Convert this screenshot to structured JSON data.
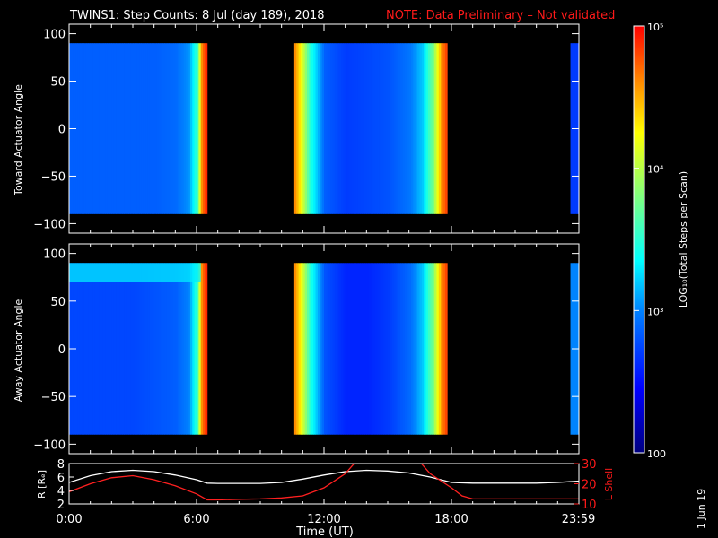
{
  "title": {
    "main": "TWINS1: Step Counts:  8 Jul (day 189), 2018",
    "note": "NOTE: Data Preliminary – Not validated"
  },
  "colors": {
    "background": "#000000",
    "note_red": "#ff1a1a",
    "lshell_red": "#ff2020",
    "radius_line": "#ffffff"
  },
  "chart_data": [
    {
      "type": "heatmap",
      "ylabel": "Toward Actuator Angle",
      "xlim": [
        0,
        24
      ],
      "ylim": [
        -110,
        110
      ],
      "yticks": [
        "100",
        "50",
        "0",
        "−50",
        "−100"
      ],
      "ytick_values": [
        100,
        50,
        0,
        -50,
        -100
      ],
      "data_angle_range": [
        -90,
        90
      ],
      "segments_hours": [
        [
          0,
          6.5
        ],
        [
          10.6,
          17.8
        ],
        [
          23.6,
          24
        ]
      ],
      "log10_counts_by_hour": [
        [
          0,
          2.85
        ],
        [
          1,
          2.85
        ],
        [
          2,
          2.85
        ],
        [
          3,
          2.85
        ],
        [
          4,
          2.85
        ],
        [
          5,
          2.9
        ],
        [
          5.6,
          3.05
        ],
        [
          6.0,
          3.6
        ],
        [
          6.2,
          4.6
        ],
        [
          6.4,
          4.9
        ],
        [
          10.6,
          4.6
        ],
        [
          10.9,
          4.2
        ],
        [
          11.3,
          3.5
        ],
        [
          12.0,
          2.85
        ],
        [
          13.0,
          2.7
        ],
        [
          14.0,
          2.75
        ],
        [
          15.0,
          2.8
        ],
        [
          16.0,
          2.95
        ],
        [
          16.6,
          3.2
        ],
        [
          17.1,
          3.8
        ],
        [
          17.5,
          4.6
        ],
        [
          17.8,
          4.9
        ],
        [
          23.6,
          2.7
        ],
        [
          24,
          2.7
        ]
      ]
    },
    {
      "type": "heatmap",
      "ylabel": "Away Actuator Angle",
      "xlim": [
        0,
        24
      ],
      "ylim": [
        -110,
        110
      ],
      "yticks": [
        "100",
        "50",
        "0",
        "−50",
        "−100"
      ],
      "ytick_values": [
        100,
        50,
        0,
        -50,
        -100
      ],
      "data_angle_range": [
        -90,
        90
      ],
      "segments_hours": [
        [
          0,
          6.5
        ],
        [
          10.6,
          17.8
        ],
        [
          23.6,
          24
        ]
      ],
      "log10_counts_by_hour": [
        [
          0,
          2.75
        ],
        [
          1,
          2.75
        ],
        [
          2,
          2.75
        ],
        [
          3,
          2.75
        ],
        [
          4,
          2.8
        ],
        [
          5,
          2.85
        ],
        [
          5.6,
          3.0
        ],
        [
          6.0,
          3.6
        ],
        [
          6.2,
          4.6
        ],
        [
          6.4,
          4.9
        ],
        [
          10.6,
          4.6
        ],
        [
          10.9,
          4.2
        ],
        [
          11.3,
          3.5
        ],
        [
          12.0,
          2.8
        ],
        [
          13.0,
          2.6
        ],
        [
          14.0,
          2.6
        ],
        [
          15.0,
          2.7
        ],
        [
          16.0,
          2.9
        ],
        [
          16.6,
          3.2
        ],
        [
          17.1,
          3.8
        ],
        [
          17.5,
          4.6
        ],
        [
          17.8,
          4.9
        ],
        [
          23.6,
          3.0
        ],
        [
          24,
          3.0
        ]
      ]
    },
    {
      "type": "line",
      "xlabel": "Time (UT)",
      "ylabel": "R [Rₑ]",
      "ylabel_right": "L Shell",
      "xlim": [
        0,
        24
      ],
      "ylim": [
        2,
        8
      ],
      "yticks_left": [
        "8",
        "6",
        "4",
        "2"
      ],
      "yticks_left_values": [
        8,
        6,
        4,
        2
      ],
      "ylim_right": [
        10,
        30
      ],
      "yticks_right": [
        "30",
        "20",
        "10"
      ],
      "yticks_right_values": [
        30,
        20,
        10
      ],
      "xticks": [
        "0:00",
        "6:00",
        "12:00",
        "18:00",
        "23:59"
      ],
      "xtick_values": [
        0,
        6,
        12,
        18,
        23.98
      ],
      "series": [
        {
          "color": "#ffffff",
          "axis": "left",
          "x": [
            0,
            1,
            2,
            3,
            4,
            5,
            6,
            6.5,
            7,
            8,
            9,
            10,
            11,
            12,
            13,
            14,
            15,
            16,
            17,
            18,
            19,
            20,
            21,
            22,
            23,
            24
          ],
          "y": [
            5.2,
            6.2,
            6.8,
            7.0,
            6.8,
            6.3,
            5.6,
            5.1,
            5.05,
            5.05,
            5.05,
            5.2,
            5.7,
            6.3,
            6.8,
            7.0,
            6.9,
            6.6,
            6.0,
            5.2,
            5.1,
            5.1,
            5.1,
            5.1,
            5.2,
            5.4
          ]
        },
        {
          "color": "#ff2020",
          "axis": "right",
          "x": [
            0,
            1,
            2,
            3,
            4,
            5,
            6,
            6.5,
            7,
            8,
            9,
            10,
            11,
            12,
            13,
            13.5,
            16.5,
            17,
            18,
            18.5,
            19,
            20,
            21,
            22,
            23,
            24
          ],
          "y": [
            16,
            20,
            23,
            24,
            22,
            19,
            15,
            12,
            12,
            12.3,
            12.5,
            13,
            14,
            18,
            25,
            31,
            31,
            25,
            18,
            14,
            12.5,
            12.5,
            12.5,
            12.5,
            12.5,
            12.5
          ]
        }
      ]
    }
  ],
  "colorbar": {
    "label": "LOG₁₀(Total Steps per Scan)",
    "ticks": [
      "10⁵",
      "10⁴",
      "10³",
      "100"
    ],
    "tick_values": [
      5,
      4,
      3,
      2
    ],
    "range": [
      2,
      5
    ]
  },
  "footer_date": "1 Jun 19"
}
